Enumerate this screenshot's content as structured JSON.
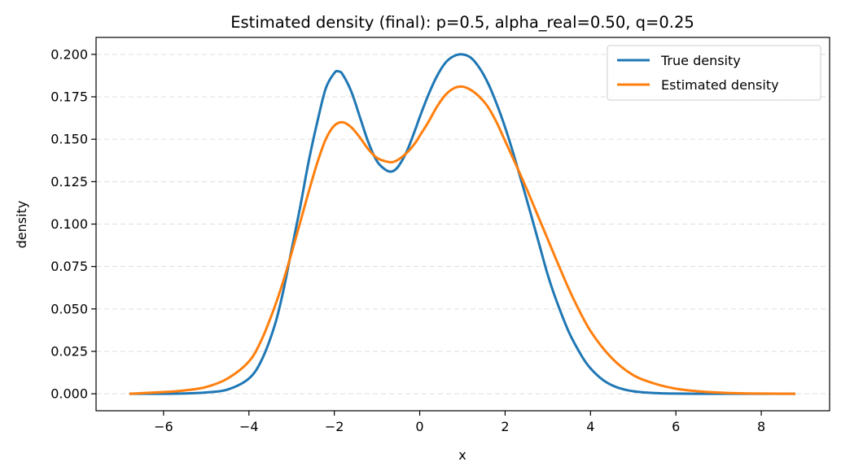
{
  "chart_data": {
    "type": "line",
    "title": "Estimated density (final): p=0.5, alpha_real=0.50, q=0.25",
    "xlabel": "x",
    "ylabel": "density",
    "xlim": [
      -7.58,
      9.6
    ],
    "ylim": [
      -0.01,
      0.21
    ],
    "xticks": [
      -6,
      -4,
      -2,
      0,
      2,
      4,
      6,
      8
    ],
    "xtick_labels": [
      "−6",
      "−4",
      "−2",
      "0",
      "2",
      "4",
      "6",
      "8"
    ],
    "yticks": [
      0.0,
      0.025,
      0.05,
      0.075,
      0.1,
      0.125,
      0.15,
      0.175,
      0.2
    ],
    "ytick_labels": [
      "0.000",
      "0.025",
      "0.050",
      "0.075",
      "0.100",
      "0.125",
      "0.150",
      "0.175",
      "0.200"
    ],
    "grid": "horizontal dashed",
    "legend_position": "top-right",
    "series": [
      {
        "name": "True density",
        "color": "#1f77b4",
        "x": [
          -6.8,
          -6.0,
          -5.5,
          -5.0,
          -4.5,
          -4.0,
          -3.7,
          -3.4,
          -3.2,
          -3.0,
          -2.8,
          -2.6,
          -2.4,
          -2.2,
          -2.0,
          -1.9,
          -1.8,
          -1.6,
          -1.4,
          -1.2,
          -1.0,
          -0.8,
          -0.65,
          -0.5,
          -0.3,
          -0.1,
          0.0,
          0.2,
          0.4,
          0.6,
          0.8,
          1.0,
          1.2,
          1.4,
          1.6,
          1.8,
          2.0,
          2.2,
          2.5,
          2.8,
          3.0,
          3.2,
          3.5,
          3.8,
          4.0,
          4.3,
          4.6,
          5.0,
          5.5,
          6.0,
          6.5,
          7.0,
          8.0,
          8.8
        ],
        "y": [
          0.0,
          0.0,
          0.0002,
          0.0008,
          0.0025,
          0.009,
          0.02,
          0.04,
          0.06,
          0.085,
          0.11,
          0.137,
          0.16,
          0.18,
          0.189,
          0.19,
          0.188,
          0.178,
          0.163,
          0.148,
          0.137,
          0.132,
          0.131,
          0.134,
          0.143,
          0.156,
          0.163,
          0.176,
          0.187,
          0.195,
          0.199,
          0.2,
          0.198,
          0.192,
          0.183,
          0.171,
          0.157,
          0.141,
          0.115,
          0.088,
          0.07,
          0.055,
          0.036,
          0.022,
          0.015,
          0.008,
          0.004,
          0.0015,
          0.0004,
          0.0001,
          0.0,
          0.0,
          0.0,
          0.0
        ]
      },
      {
        "name": "Estimated density",
        "color": "#ff7f0e",
        "x": [
          -6.8,
          -6.0,
          -5.5,
          -5.0,
          -4.5,
          -4.0,
          -3.7,
          -3.4,
          -3.2,
          -3.0,
          -2.8,
          -2.6,
          -2.4,
          -2.2,
          -2.0,
          -1.8,
          -1.6,
          -1.4,
          -1.2,
          -1.0,
          -0.8,
          -0.65,
          -0.5,
          -0.3,
          -0.1,
          0.0,
          0.2,
          0.4,
          0.6,
          0.8,
          1.0,
          1.2,
          1.4,
          1.6,
          1.8,
          2.0,
          2.2,
          2.5,
          2.8,
          3.0,
          3.3,
          3.6,
          4.0,
          4.5,
          5.0,
          5.5,
          6.0,
          6.5,
          7.0,
          7.5,
          8.0,
          8.8
        ],
        "y": [
          0.0,
          0.001,
          0.002,
          0.004,
          0.009,
          0.019,
          0.032,
          0.051,
          0.066,
          0.083,
          0.101,
          0.119,
          0.136,
          0.15,
          0.158,
          0.16,
          0.157,
          0.151,
          0.144,
          0.139,
          0.137,
          0.1365,
          0.138,
          0.142,
          0.148,
          0.152,
          0.16,
          0.169,
          0.176,
          0.18,
          0.181,
          0.179,
          0.175,
          0.169,
          0.16,
          0.149,
          0.138,
          0.121,
          0.103,
          0.091,
          0.073,
          0.056,
          0.037,
          0.021,
          0.011,
          0.006,
          0.003,
          0.0015,
          0.0007,
          0.0003,
          0.0001,
          0.0
        ]
      }
    ]
  }
}
